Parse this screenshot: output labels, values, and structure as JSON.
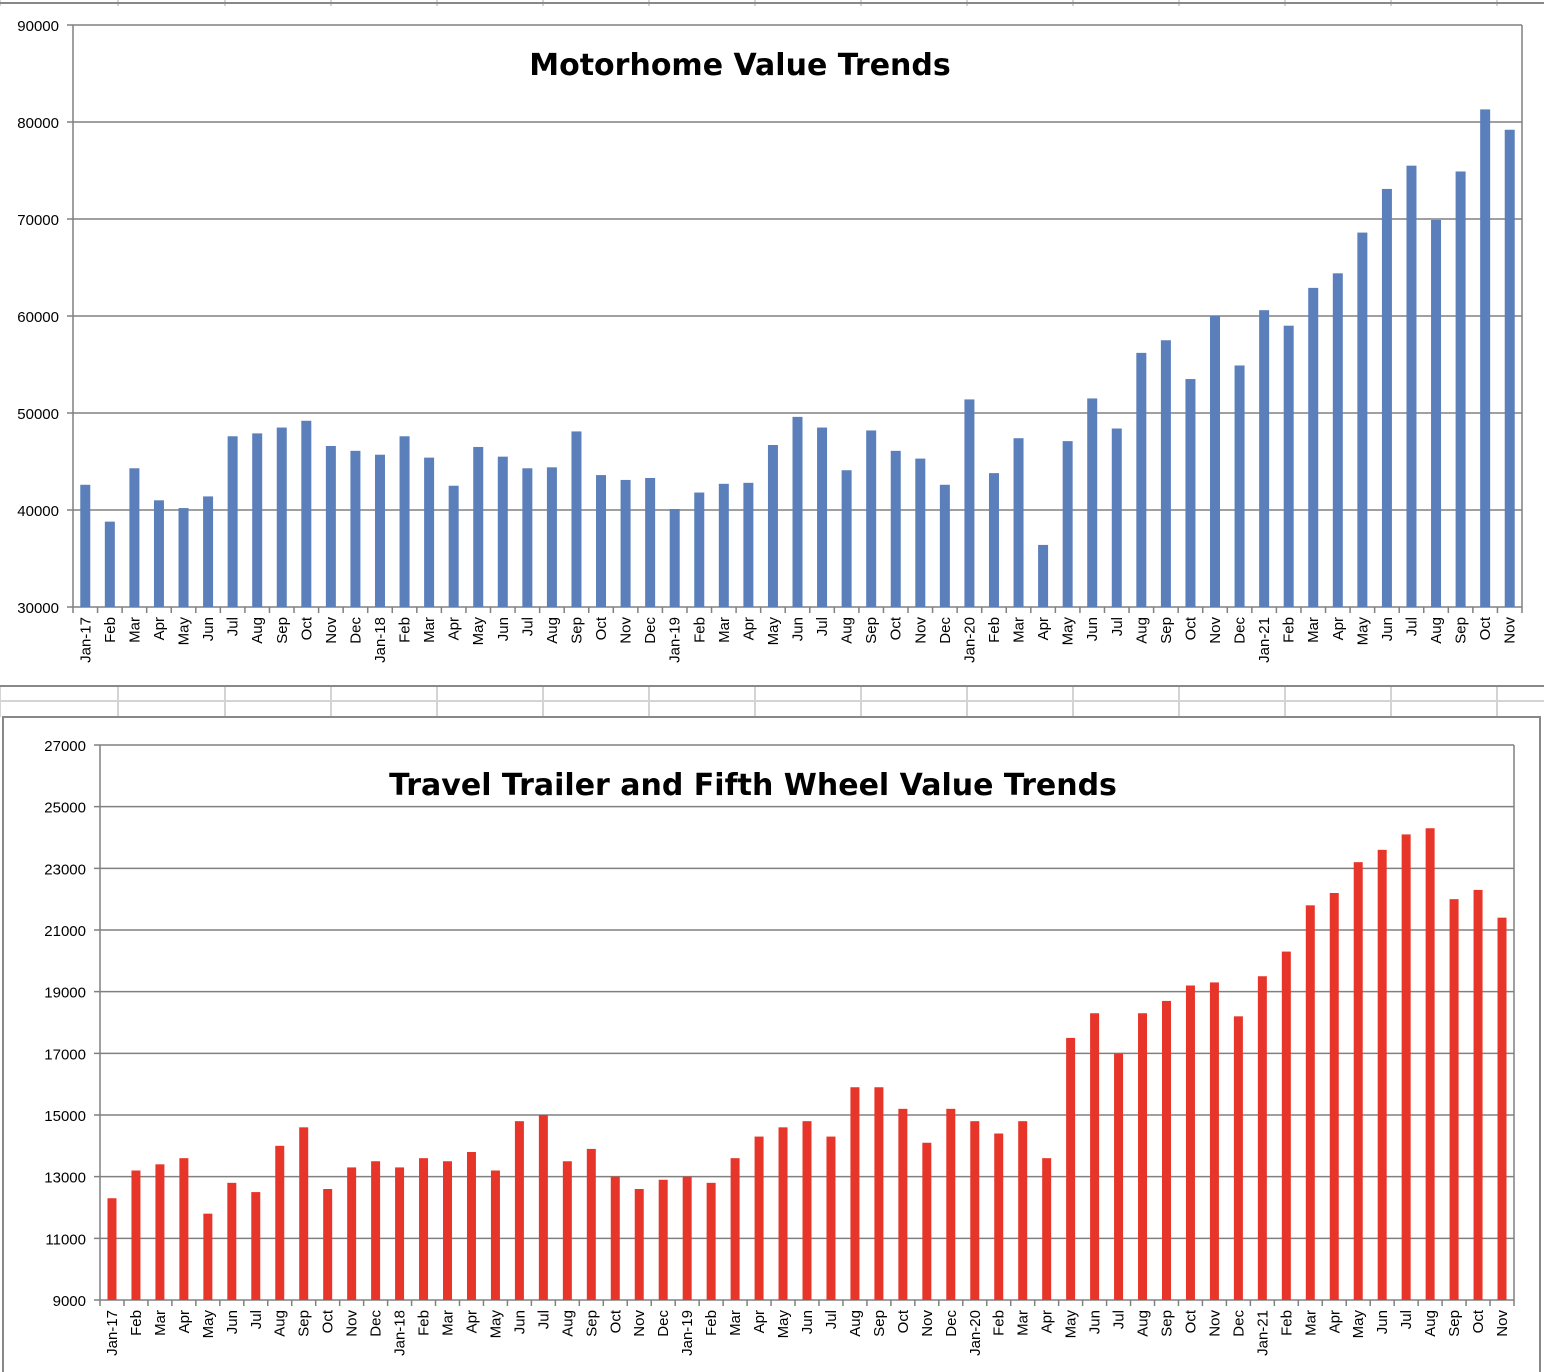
{
  "chart_data": [
    {
      "type": "bar",
      "title": "Motorhome Value Trends",
      "xlabel": "",
      "ylabel": "",
      "ylim": [
        30000,
        90000
      ],
      "yticks": [
        30000,
        40000,
        50000,
        60000,
        70000,
        80000,
        90000
      ],
      "grid": true,
      "color": "#5b7fbb",
      "categories": [
        "Jan-17",
        "Feb",
        "Mar",
        "Apr",
        "May",
        "Jun",
        "Jul",
        "Aug",
        "Sep",
        "Oct",
        "Nov",
        "Dec",
        "Jan-18",
        "Feb",
        "Mar",
        "Apr",
        "May",
        "Jun",
        "Jul",
        "Aug",
        "Sep",
        "Oct",
        "Nov",
        "Dec",
        "Jan-19",
        "Feb",
        "Mar",
        "Apr",
        "May",
        "Jun",
        "Jul",
        "Aug",
        "Sep",
        "Oct",
        "Nov",
        "Dec",
        "Jan-20",
        "Feb",
        "Mar",
        "Apr",
        "May",
        "Jun",
        "Jul",
        "Aug",
        "Sep",
        "Oct",
        "Nov",
        "Dec",
        "Jan-21",
        "Feb",
        "Mar",
        "Apr",
        "May",
        "Jun",
        "Jul",
        "Aug",
        "Sep",
        "Oct",
        "Nov"
      ],
      "values": [
        42600,
        38800,
        44300,
        41000,
        40200,
        41400,
        47600,
        47900,
        48500,
        49200,
        46600,
        46100,
        45700,
        47600,
        45400,
        42500,
        46500,
        45500,
        44300,
        44400,
        48100,
        43600,
        43100,
        43300,
        40100,
        41800,
        42700,
        42800,
        46700,
        49600,
        48500,
        44100,
        48200,
        46100,
        45300,
        42600,
        51400,
        43800,
        47400,
        36400,
        47100,
        51500,
        48400,
        56200,
        57500,
        53500,
        60000,
        54900,
        60600,
        59000,
        62900,
        64400,
        68600,
        73100,
        75500,
        69900,
        74900,
        81300,
        79200
      ]
    },
    {
      "type": "bar",
      "title": "Travel Trailer and Fifth Wheel Value Trends",
      "xlabel": "",
      "ylabel": "",
      "ylim": [
        9000,
        27000
      ],
      "yticks": [
        9000,
        11000,
        13000,
        15000,
        17000,
        19000,
        21000,
        23000,
        25000,
        27000
      ],
      "grid": true,
      "color": "#e8352a",
      "categories": [
        "Jan-17",
        "Feb",
        "Mar",
        "Apr",
        "May",
        "Jun",
        "Jul",
        "Aug",
        "Sep",
        "Oct",
        "Nov",
        "Dec",
        "Jan-18",
        "Feb",
        "Mar",
        "Apr",
        "May",
        "Jun",
        "Jul",
        "Aug",
        "Sep",
        "Oct",
        "Nov",
        "Dec",
        "Jan-19",
        "Feb",
        "Mar",
        "Apr",
        "May",
        "Jun",
        "Jul",
        "Aug",
        "Sep",
        "Oct",
        "Nov",
        "Dec",
        "Jan-20",
        "Feb",
        "Mar",
        "Apr",
        "May",
        "Jun",
        "Jul",
        "Aug",
        "Sep",
        "Oct",
        "Nov",
        "Dec",
        "Jan-21",
        "Feb",
        "Mar",
        "Apr",
        "May",
        "Jun",
        "Jul",
        "Aug",
        "Sep",
        "Oct",
        "Nov"
      ],
      "values": [
        12300,
        13200,
        13400,
        13600,
        11800,
        12800,
        12500,
        14000,
        14600,
        12600,
        13300,
        13500,
        13300,
        13600,
        13500,
        13800,
        13200,
        14800,
        15000,
        13500,
        13900,
        13000,
        12600,
        12900,
        13000,
        12800,
        13600,
        14300,
        14600,
        14800,
        14300,
        15900,
        15900,
        15200,
        14100,
        15200,
        14800,
        14400,
        14800,
        13600,
        17500,
        18300,
        17000,
        18300,
        18700,
        19200,
        19300,
        18200,
        19500,
        20300,
        21800,
        22200,
        23200,
        23600,
        24100,
        24300,
        22000,
        22300,
        21400
      ]
    }
  ]
}
